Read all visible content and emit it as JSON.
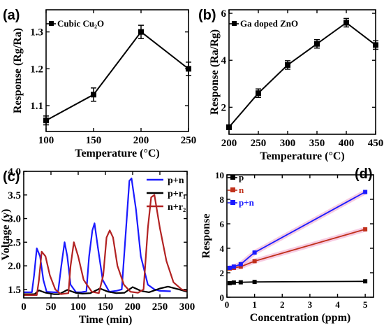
{
  "chart_data": [
    {
      "type": "line",
      "panel_label": "(a)",
      "xlabel": "Temperature (°C)",
      "ylabel": "Response (Rg/Ra)",
      "xlim": [
        100,
        250
      ],
      "ylim": [
        1.03,
        1.36
      ],
      "xticks": [
        100,
        150,
        200,
        250
      ],
      "yticks": [
        1.1,
        1.2,
        1.3
      ],
      "xtick_labels": [
        "100",
        "150",
        "200",
        "250"
      ],
      "ytick_labels": [
        "1.1",
        "1.2",
        "1.3"
      ],
      "legend_position": "top-left",
      "series": [
        {
          "name": "Cubic Cu₂O",
          "color": "#000000",
          "marker": "square",
          "x": [
            100,
            150,
            200,
            250
          ],
          "y": [
            1.06,
            1.13,
            1.3,
            1.2
          ],
          "error": [
            0.012,
            0.018,
            0.018,
            0.018
          ]
        }
      ]
    },
    {
      "type": "line",
      "panel_label": "(b)",
      "xlabel": "Temperature (°C)",
      "ylabel": "Response (Ra/Rg)",
      "xlim": [
        200,
        450
      ],
      "ylim": [
        0.85,
        6.15
      ],
      "xticks": [
        200,
        250,
        300,
        350,
        400,
        450
      ],
      "yticks": [
        2,
        4,
        6
      ],
      "xtick_labels": [
        "200",
        "250",
        "300",
        "350",
        "400",
        "450"
      ],
      "ytick_labels": [
        "2",
        "4",
        "6"
      ],
      "legend_position": "top-left",
      "series": [
        {
          "name": "Ga doped ZnO",
          "color": "#000000",
          "marker": "square",
          "x": [
            200,
            250,
            300,
            350,
            400,
            450
          ],
          "y": [
            1.15,
            2.6,
            3.8,
            4.7,
            5.6,
            4.65
          ],
          "error": [
            0.1,
            0.18,
            0.18,
            0.18,
            0.18,
            0.18
          ]
        }
      ]
    },
    {
      "type": "line",
      "panel_label": "(c)",
      "xlabel": "Time (min)",
      "ylabel": "Voltage (v)",
      "xlim": [
        0,
        300
      ],
      "ylim": [
        1.32,
        4.0
      ],
      "xticks": [
        0,
        50,
        100,
        150,
        200,
        250,
        300
      ],
      "yticks": [
        1.5,
        2.0,
        2.5,
        3.0,
        3.5,
        4.0
      ],
      "xtick_labels": [
        "0",
        "50",
        "100",
        "150",
        "200",
        "250",
        "300"
      ],
      "ytick_labels": [
        "1.5",
        "2.0",
        "2.5",
        "3.0",
        "3.5",
        "4.0"
      ],
      "legend_position": "top-center",
      "series": [
        {
          "name": "p+n",
          "color": "#1a1aff",
          "x": [
            0,
            15,
            19,
            24,
            30,
            36,
            42,
            55,
            63,
            69,
            75,
            80,
            86,
            96,
            105,
            115,
            120,
            126,
            130,
            136,
            145,
            157,
            170,
            180,
            188,
            194,
            198,
            206,
            215,
            228,
            240,
            250,
            270
          ],
          "y": [
            1.44,
            1.44,
            1.8,
            2.37,
            2.2,
            1.7,
            1.45,
            1.44,
            1.44,
            2.0,
            2.5,
            2.2,
            1.6,
            1.44,
            1.44,
            1.46,
            2.2,
            2.75,
            2.9,
            2.4,
            1.7,
            1.45,
            1.47,
            1.5,
            2.8,
            3.8,
            3.85,
            3.2,
            2.2,
            1.6,
            1.5,
            1.47,
            1.46
          ]
        },
        {
          "name": "p+r₁",
          "color": "#000000",
          "x": [
            0,
            20,
            28,
            40,
            55,
            65,
            80,
            95,
            108,
            122,
            140,
            155,
            170,
            185,
            200,
            215,
            230,
            250,
            265,
            285,
            300
          ],
          "y": [
            1.4,
            1.4,
            1.48,
            1.43,
            1.4,
            1.4,
            1.49,
            1.43,
            1.41,
            1.42,
            1.52,
            1.45,
            1.42,
            1.43,
            1.55,
            1.47,
            1.44,
            1.52,
            1.56,
            1.5,
            1.45
          ]
        },
        {
          "name": "n+r₂",
          "color": "#b22222",
          "x": [
            0,
            24,
            28,
            33,
            40,
            48,
            58,
            68,
            82,
            86,
            92,
            100,
            110,
            125,
            138,
            146,
            152,
            158,
            164,
            172,
            184,
            196,
            210,
            220,
            228,
            234,
            240,
            250,
            262,
            275,
            290,
            300
          ],
          "y": [
            1.38,
            1.38,
            1.7,
            2.3,
            2.2,
            1.8,
            1.5,
            1.4,
            1.42,
            2.0,
            2.5,
            2.2,
            1.7,
            1.45,
            1.42,
            1.8,
            2.6,
            2.75,
            2.6,
            2.0,
            1.6,
            1.45,
            1.43,
            1.5,
            2.8,
            3.45,
            3.5,
            2.8,
            2.1,
            1.65,
            1.5,
            1.47
          ]
        }
      ]
    },
    {
      "type": "line",
      "panel_label": "(d)",
      "xlabel": "Concentration (ppm)",
      "ylabel": "Response",
      "xlim": [
        0,
        5.3
      ],
      "ylim": [
        0,
        10
      ],
      "xticks": [
        0,
        1,
        2,
        3,
        4,
        5
      ],
      "yticks": [
        0,
        2,
        4,
        6,
        8,
        10
      ],
      "xtick_labels": [
        "0",
        "1",
        "2",
        "3",
        "4",
        "5"
      ],
      "ytick_labels": [
        "0",
        "2",
        "4",
        "6",
        "8",
        "10"
      ],
      "legend_position": "top-left",
      "series": [
        {
          "name": "p",
          "color": "#000000",
          "marker": "square",
          "x": [
            0.1,
            0.25,
            0.5,
            1,
            5
          ],
          "y": [
            1.15,
            1.2,
            1.22,
            1.25,
            1.3
          ]
        },
        {
          "name": "n",
          "color": "#c0301a",
          "marker": "square",
          "x": [
            0.1,
            0.25,
            0.5,
            1,
            5
          ],
          "y": [
            2.35,
            2.4,
            2.5,
            2.95,
            5.55
          ]
        },
        {
          "name": "p+n",
          "color": "#1a1aff",
          "marker": "square",
          "x": [
            0.1,
            0.25,
            0.5,
            1,
            5
          ],
          "y": [
            2.4,
            2.5,
            2.7,
            3.65,
            8.6
          ]
        }
      ]
    }
  ]
}
